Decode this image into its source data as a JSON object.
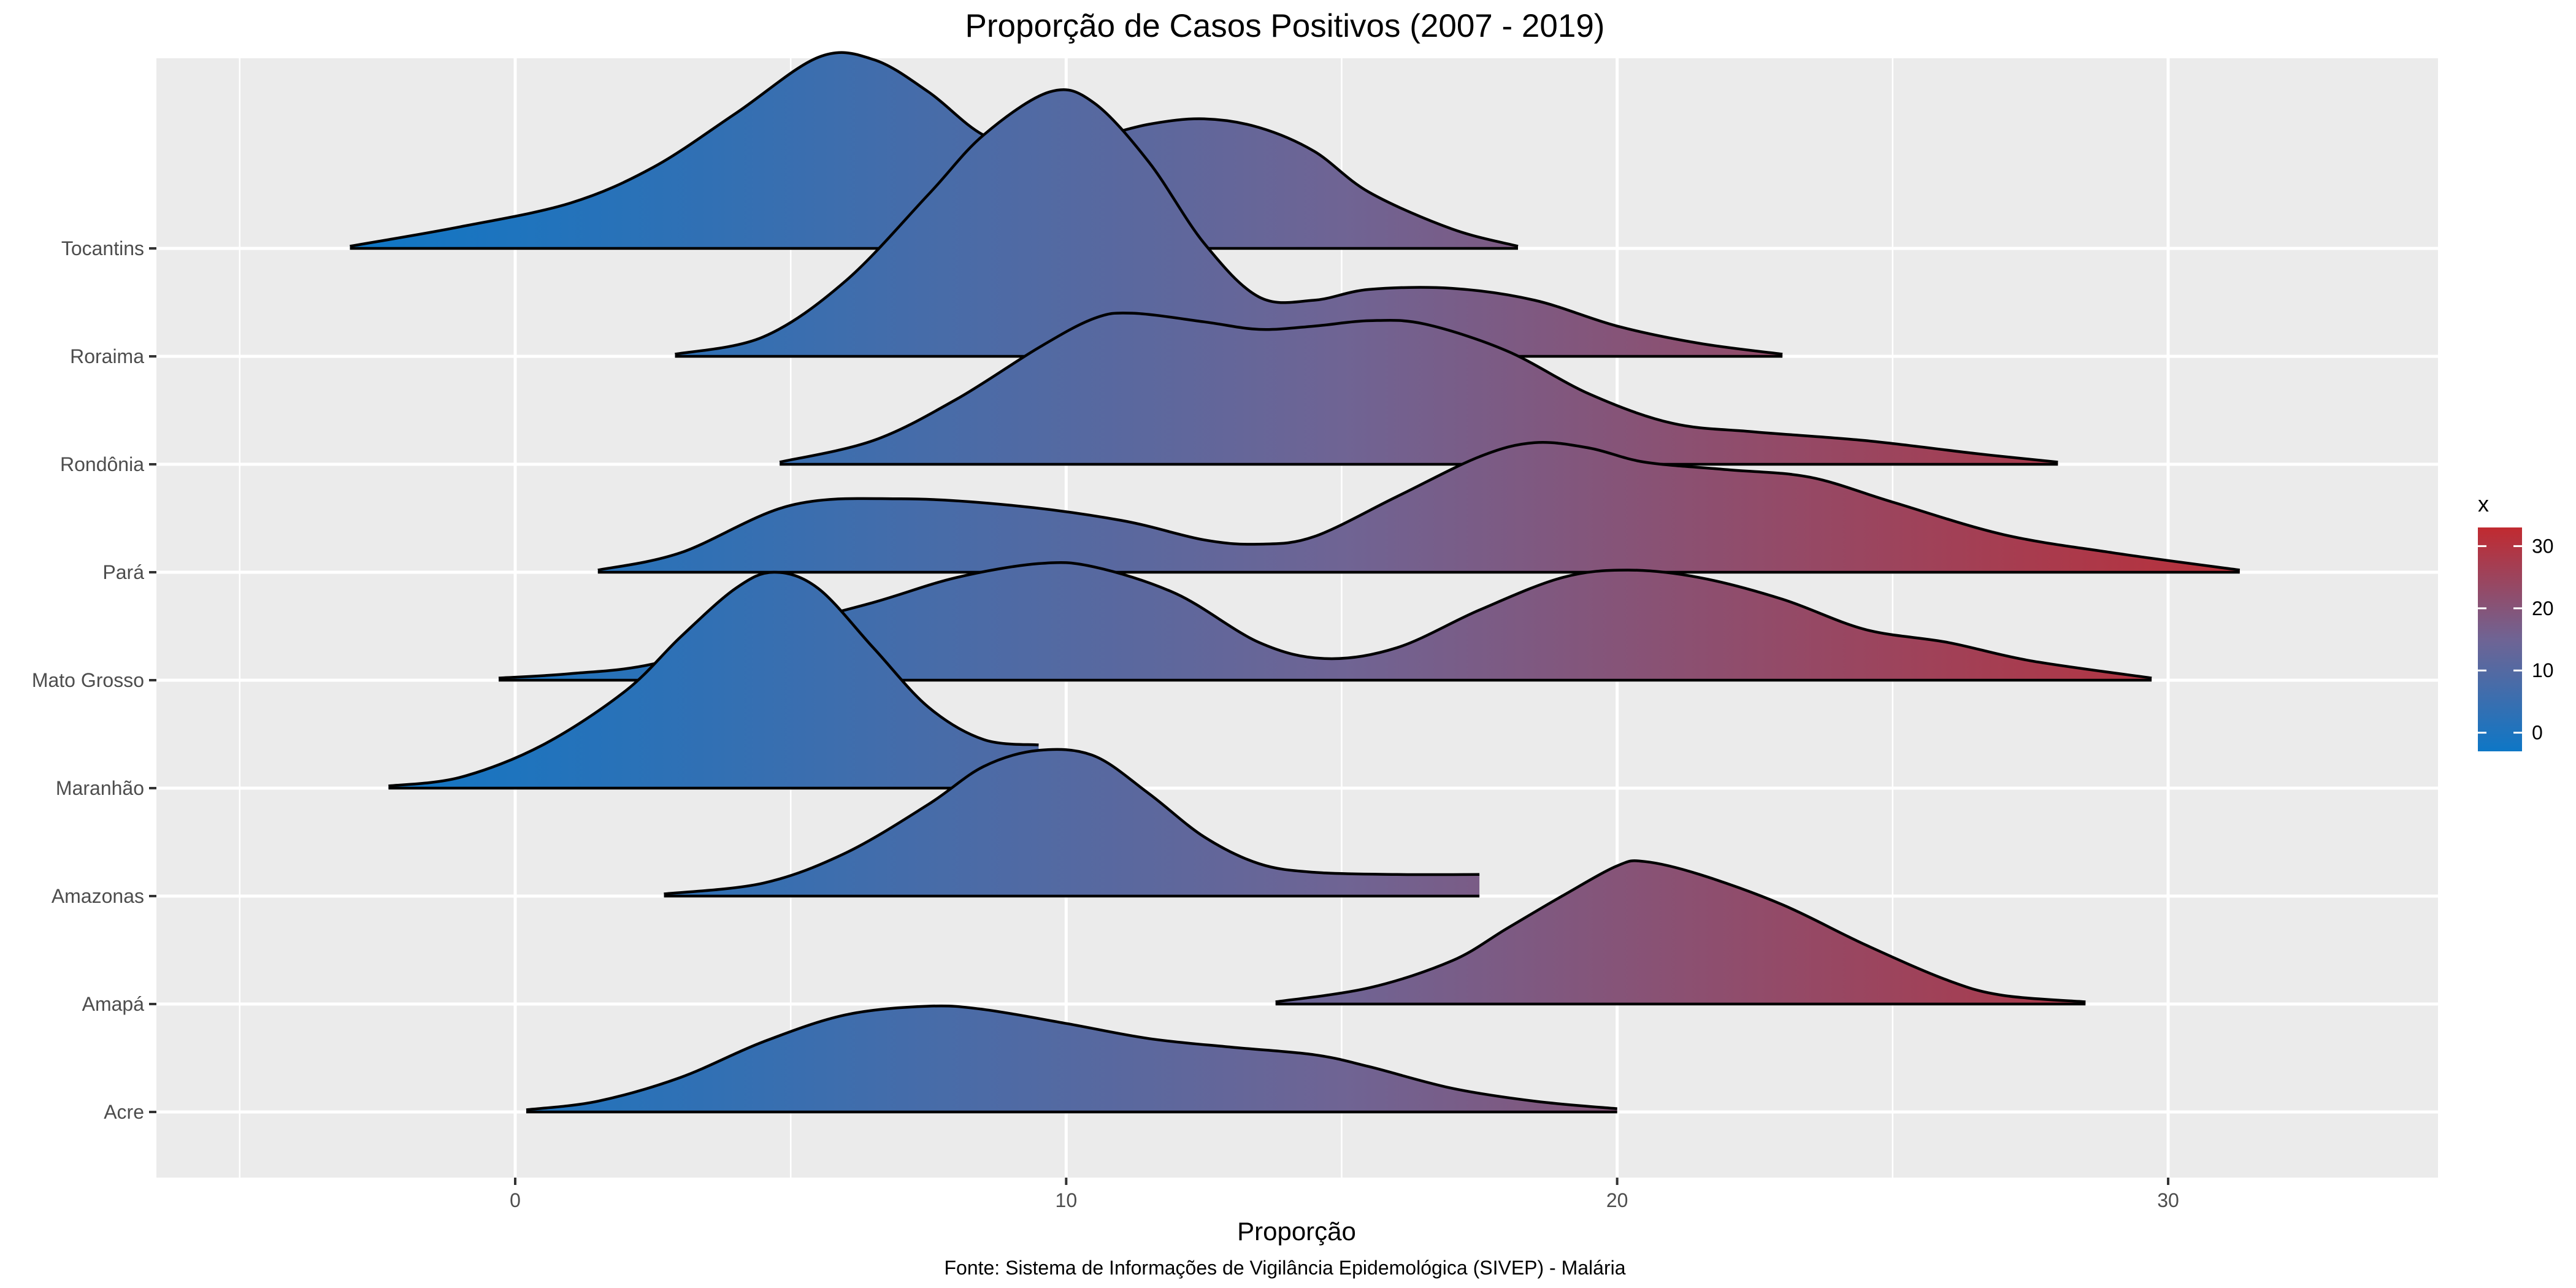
{
  "chart_data": {
    "type": "ridgeline",
    "title": "Proporção de Casos Positivos (2007 - 2019)",
    "xlabel": "Proporção",
    "ylabel": "",
    "caption": "Fonte: Sistema de Informações de Vigilância Epidemológica (SIVEP) - Malária",
    "xlim": [
      -6.5,
      35
    ],
    "x_ticks": [
      0,
      10,
      20,
      30
    ],
    "grid": true,
    "legend": {
      "title": "x",
      "position": "right",
      "type": "colorbar",
      "range": [
        -3,
        33
      ],
      "ticks": [
        0,
        10,
        20,
        30
      ],
      "low_color": "#0e77c6",
      "mid_color": "#6f6494",
      "high_color": "#c12a30"
    },
    "series": [
      {
        "name": "Acre",
        "x": [
          0.2,
          1.5,
          3,
          4.5,
          6,
          7.5,
          8.5,
          10,
          11.5,
          13,
          14.5,
          15.5,
          17,
          18.5,
          20
        ],
        "density": [
          0.02,
          0.1,
          0.32,
          0.65,
          0.9,
          0.98,
          0.95,
          0.82,
          0.68,
          0.6,
          0.53,
          0.42,
          0.22,
          0.1,
          0.03
        ]
      },
      {
        "name": "Amapá",
        "x": [
          13.8,
          15.5,
          17,
          18,
          19,
          20,
          20.5,
          21.5,
          23,
          24.5,
          26,
          27,
          28.5
        ],
        "density": [
          0.02,
          0.15,
          0.4,
          0.7,
          1.0,
          1.28,
          1.32,
          1.2,
          0.92,
          0.55,
          0.22,
          0.08,
          0.02
        ]
      },
      {
        "name": "Amazonas",
        "x": [
          2.7,
          4.5,
          6,
          7.5,
          8.5,
          9.5,
          10.5,
          11.5,
          12.5,
          13.5,
          14.5,
          16,
          17.5
        ],
        "density": [
          0.02,
          0.12,
          0.4,
          0.85,
          1.2,
          1.35,
          1.3,
          0.95,
          0.55,
          0.3,
          0.22,
          0.2,
          0.2
        ]
      },
      {
        "name": "Maranhão",
        "x": [
          -2.3,
          -1,
          0.5,
          2,
          3,
          4,
          4.7,
          5.5,
          6.5,
          7.5,
          8.5,
          9.5
        ],
        "density": [
          0.02,
          0.1,
          0.4,
          0.9,
          1.4,
          1.85,
          2.0,
          1.85,
          1.3,
          0.75,
          0.45,
          0.4
        ]
      },
      {
        "name": "Mato Grosso",
        "x": [
          -0.3,
          1,
          2.5,
          4.5,
          6.5,
          8,
          9.5,
          10.5,
          12,
          13.5,
          14.7,
          16,
          17.5,
          19,
          20.2,
          21.5,
          23,
          24.5,
          26,
          27.5,
          29.7
        ],
        "density": [
          0.02,
          0.06,
          0.15,
          0.45,
          0.72,
          0.95,
          1.08,
          1.05,
          0.8,
          0.35,
          0.2,
          0.3,
          0.65,
          0.95,
          1.02,
          0.95,
          0.75,
          0.47,
          0.35,
          0.18,
          0.02
        ]
      },
      {
        "name": "Pará",
        "x": [
          1.5,
          3,
          5,
          7,
          9,
          11,
          12.5,
          13.5,
          14.5,
          16,
          17.5,
          18.5,
          19.5,
          20.5,
          22,
          23.5,
          25,
          27,
          29,
          31.3
        ],
        "density": [
          0.02,
          0.18,
          0.62,
          0.68,
          0.62,
          0.48,
          0.3,
          0.26,
          0.33,
          0.7,
          1.07,
          1.2,
          1.15,
          1.02,
          0.95,
          0.88,
          0.65,
          0.35,
          0.18,
          0.02
        ]
      },
      {
        "name": "Rondônia",
        "x": [
          4.8,
          6.5,
          8,
          9.5,
          10.5,
          11.2,
          12.5,
          13.5,
          14.5,
          15.5,
          16.5,
          18,
          19.5,
          21,
          22.5,
          24.5,
          26.5,
          28
        ],
        "density": [
          0.02,
          0.22,
          0.6,
          1.08,
          1.35,
          1.4,
          1.32,
          1.25,
          1.28,
          1.33,
          1.3,
          1.05,
          0.65,
          0.38,
          0.3,
          0.22,
          0.1,
          0.02
        ]
      },
      {
        "name": "Roraima",
        "x": [
          2.9,
          4.5,
          6,
          7.5,
          8.5,
          9.7,
          10.5,
          11.5,
          12.5,
          13.5,
          14.5,
          15.5,
          17,
          18.5,
          20,
          21.5,
          23
        ],
        "density": [
          0.02,
          0.18,
          0.7,
          1.5,
          2.05,
          2.45,
          2.35,
          1.8,
          1.05,
          0.55,
          0.52,
          0.62,
          0.63,
          0.52,
          0.28,
          0.12,
          0.02
        ]
      },
      {
        "name": "Tocantins",
        "x": [
          -3,
          -1,
          1,
          2.5,
          4,
          5.5,
          6.5,
          7.5,
          8.5,
          9.5,
          10.5,
          11.5,
          12.5,
          13.5,
          14.5,
          15.5,
          17,
          18.2
        ],
        "density": [
          0.02,
          0.2,
          0.42,
          0.75,
          1.25,
          1.77,
          1.75,
          1.45,
          1.05,
          0.92,
          1.02,
          1.15,
          1.2,
          1.12,
          0.9,
          0.52,
          0.18,
          0.02
        ]
      }
    ]
  }
}
